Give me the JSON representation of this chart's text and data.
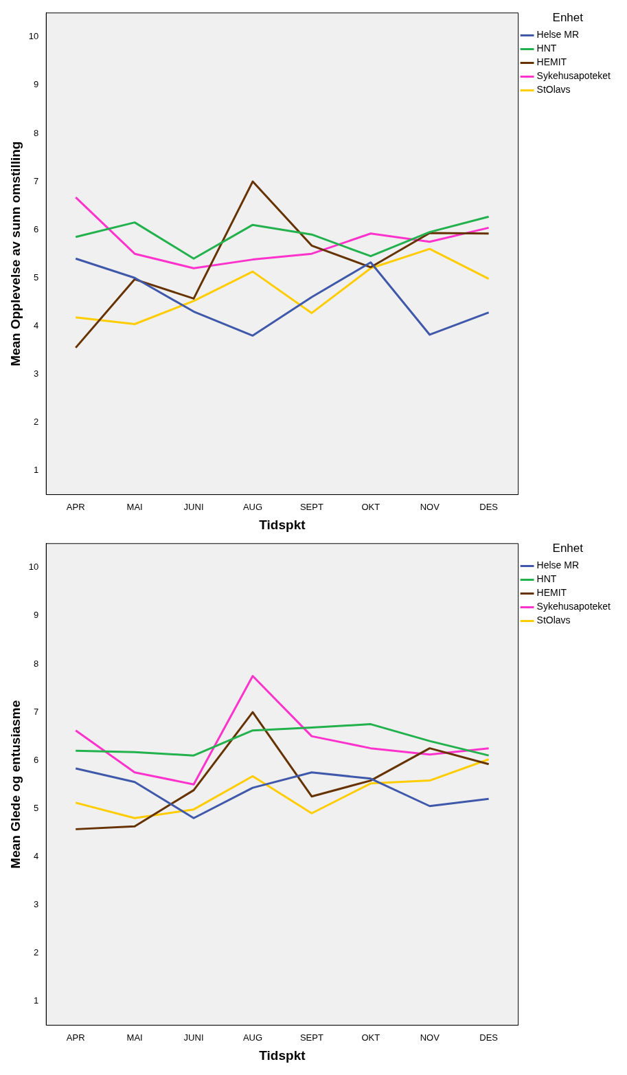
{
  "chart_data": [
    {
      "type": "line",
      "xlabel": "Tidspkt",
      "ylabel": "Mean Opplevelse av sunn omstilling",
      "legend_title": "Enhet",
      "legend": "top right",
      "marker": "none",
      "line_style": "solid",
      "categories": [
        "APR",
        "MAI",
        "JUNI",
        "AUG",
        "SEPT",
        "OKT",
        "NOV",
        "DES"
      ],
      "ylim": [
        0.5,
        10.5
      ],
      "yticks": [
        1,
        2,
        3,
        4,
        5,
        6,
        7,
        8,
        9,
        10
      ],
      "series": [
        {
          "name": "Helse MR",
          "color": "#3f58aa",
          "values": [
            5.4,
            5.0,
            4.3,
            3.8,
            4.6,
            5.32,
            3.82,
            4.28
          ]
        },
        {
          "name": "HNT",
          "color": "#22b14c",
          "values": [
            5.85,
            6.15,
            5.4,
            6.1,
            5.9,
            5.45,
            5.95,
            6.27
          ]
        },
        {
          "name": "HEMIT",
          "color": "#663300",
          "values": [
            3.55,
            4.97,
            4.57,
            7.0,
            5.67,
            5.22,
            5.93,
            5.92
          ]
        },
        {
          "name": "Sykehusapoteket",
          "color": "#ff33cc",
          "values": [
            6.67,
            5.5,
            5.2,
            5.38,
            5.5,
            5.92,
            5.75,
            6.04
          ]
        },
        {
          "name": "StOlavs",
          "color": "#ffcc00",
          "values": [
            4.18,
            4.04,
            4.52,
            5.13,
            4.27,
            5.2,
            5.6,
            4.98
          ]
        }
      ]
    },
    {
      "type": "line",
      "xlabel": "Tidspkt",
      "ylabel": "Mean Glede og entusiasme",
      "legend_title": "Enhet",
      "legend": "top right",
      "marker": "none",
      "line_style": "solid",
      "categories": [
        "APR",
        "MAI",
        "JUNI",
        "AUG",
        "SEPT",
        "OKT",
        "NOV",
        "DES"
      ],
      "ylim": [
        0.5,
        10.5
      ],
      "yticks": [
        1,
        2,
        3,
        4,
        5,
        6,
        7,
        8,
        9,
        10
      ],
      "series": [
        {
          "name": "Helse MR",
          "color": "#3f58aa",
          "values": [
            5.83,
            5.55,
            4.8,
            5.43,
            5.75,
            5.62,
            5.05,
            5.2
          ]
        },
        {
          "name": "HNT",
          "color": "#22b14c",
          "values": [
            6.2,
            6.17,
            6.1,
            6.62,
            6.68,
            6.75,
            6.4,
            6.1
          ]
        },
        {
          "name": "HEMIT",
          "color": "#663300",
          "values": [
            4.57,
            4.63,
            5.38,
            7.0,
            5.25,
            5.58,
            6.25,
            5.92
          ]
        },
        {
          "name": "Sykehusapoteket",
          "color": "#ff33cc",
          "values": [
            6.62,
            5.75,
            5.5,
            7.75,
            6.5,
            6.25,
            6.12,
            6.25
          ]
        },
        {
          "name": "StOlavs",
          "color": "#ffcc00",
          "values": [
            5.12,
            4.8,
            4.98,
            5.67,
            4.9,
            5.52,
            5.58,
            6.02
          ]
        }
      ]
    }
  ]
}
